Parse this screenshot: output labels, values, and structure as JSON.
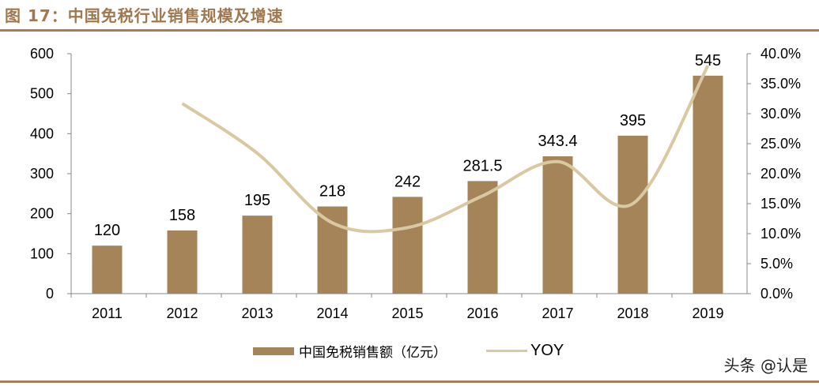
{
  "title": "图 17：中国免税行业销售规模及增速",
  "watermark": "头条 @认是",
  "chart_data": {
    "type": "bar+line",
    "categories": [
      "2011",
      "2012",
      "2013",
      "2014",
      "2015",
      "2016",
      "2017",
      "2018",
      "2019"
    ],
    "series": [
      {
        "name": "中国免税销售额（亿元）",
        "type": "bar",
        "axis": "left",
        "color": "#a6845a",
        "values": [
          120,
          158,
          195,
          218,
          242,
          281.5,
          343.4,
          395,
          545
        ],
        "labels": [
          "120",
          "158",
          "195",
          "218",
          "242",
          "281.5",
          "343.4",
          "395",
          "545"
        ]
      },
      {
        "name": "YOY",
        "type": "line",
        "axis": "right",
        "color": "#d9c9a3",
        "values": [
          null,
          31.7,
          23.4,
          11.8,
          11.0,
          16.3,
          22.0,
          15.0,
          38.0
        ]
      }
    ],
    "left_axis": {
      "ylim": [
        0,
        600
      ],
      "ticks": [
        "0",
        "100",
        "200",
        "300",
        "400",
        "500",
        "600"
      ]
    },
    "right_axis": {
      "ylim": [
        0,
        40
      ],
      "ticks": [
        "0.0%",
        "5.0%",
        "10.0%",
        "15.0%",
        "20.0%",
        "25.0%",
        "30.0%",
        "35.0%",
        "40.0%"
      ]
    },
    "grid": false,
    "legend": "bottom"
  }
}
